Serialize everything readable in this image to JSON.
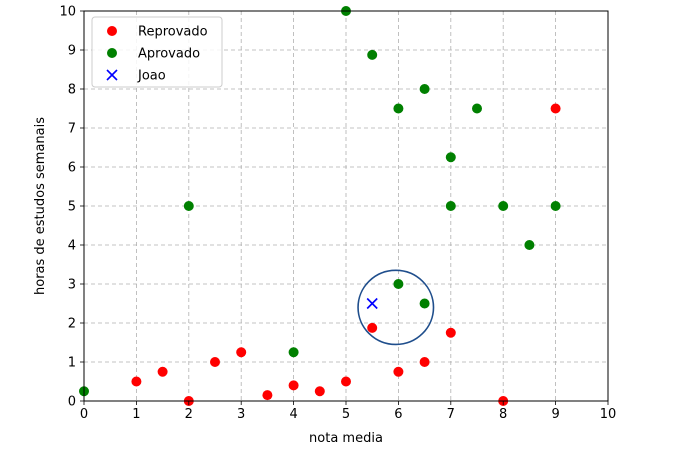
{
  "chart_data": {
    "type": "scatter",
    "xlabel": "nota media",
    "ylabel": "horas de estudos semanais",
    "xlim": [
      0,
      10
    ],
    "ylim": [
      0,
      10
    ],
    "xticks": [
      "0",
      "1",
      "2",
      "3",
      "4",
      "5",
      "6",
      "7",
      "8",
      "9",
      "10"
    ],
    "yticks": [
      "0",
      "1",
      "2",
      "3",
      "4",
      "5",
      "6",
      "7",
      "8",
      "9",
      "10"
    ],
    "grid": true,
    "legend_position": "top-left",
    "series": [
      {
        "name": "Reprovado",
        "marker": "circle",
        "color": "#ff0000",
        "points": [
          [
            1,
            0.5
          ],
          [
            1.5,
            0.75
          ],
          [
            2,
            0
          ],
          [
            2.5,
            1
          ],
          [
            3,
            1.25
          ],
          [
            3.5,
            0.15
          ],
          [
            4,
            0.4
          ],
          [
            4.5,
            0.25
          ],
          [
            5,
            0.5
          ],
          [
            5.5,
            1.875
          ],
          [
            6,
            0.75
          ],
          [
            6.5,
            1
          ],
          [
            7,
            1.75
          ],
          [
            8,
            0
          ],
          [
            9,
            7.5
          ]
        ]
      },
      {
        "name": "Aprovado",
        "marker": "circle",
        "color": "#008000",
        "points": [
          [
            0,
            0.25
          ],
          [
            2,
            5
          ],
          [
            4,
            1.25
          ],
          [
            5,
            10
          ],
          [
            5.5,
            8.875
          ],
          [
            6,
            7.5
          ],
          [
            6,
            3
          ],
          [
            6.5,
            8
          ],
          [
            6.5,
            2.5
          ],
          [
            7,
            6.25
          ],
          [
            7,
            5
          ],
          [
            7.5,
            7.5
          ],
          [
            8,
            5
          ],
          [
            8.5,
            4
          ],
          [
            9,
            5
          ]
        ]
      },
      {
        "name": "Joao",
        "marker": "x",
        "color": "#0000ff",
        "points": [
          [
            5.5,
            2.5
          ]
        ]
      }
    ],
    "annotation": {
      "shape": "ellipse",
      "color": "#1f4e8c",
      "center": [
        5.95,
        2.4
      ],
      "radius_x": 0.72,
      "radius_y": 0.95
    }
  }
}
